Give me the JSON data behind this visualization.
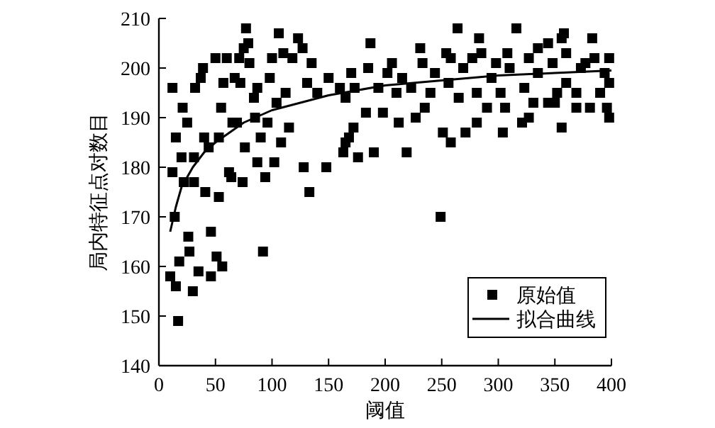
{
  "chart_data": {
    "type": "scatter",
    "xlabel": "阈值",
    "ylabel": "局内特征点对数目",
    "xlim": [
      0,
      400
    ],
    "ylim": [
      140,
      210
    ],
    "xticks": [
      0,
      50,
      100,
      150,
      200,
      250,
      300,
      350,
      400
    ],
    "yticks": [
      140,
      150,
      160,
      170,
      180,
      190,
      200,
      210
    ],
    "legend": "bottom right",
    "marker": "square",
    "series": [
      {
        "name": "原始值",
        "color": "#000000",
        "x": [
          12,
          12,
          10,
          15,
          14,
          15,
          17,
          18,
          20,
          21,
          22,
          25,
          26,
          27,
          30,
          31,
          31,
          32,
          35,
          37,
          39,
          40,
          41,
          44,
          46,
          46,
          50,
          51,
          53,
          53,
          56,
          55,
          57,
          60,
          62,
          64,
          65,
          67,
          69,
          71,
          72,
          74,
          75,
          77,
          76,
          79,
          80,
          84,
          85,
          87,
          87,
          90,
          92,
          94,
          96,
          98,
          100,
          102,
          104,
          106,
          108,
          110,
          112,
          115,
          118,
          123,
          127,
          128,
          131,
          133,
          135,
          148,
          140,
          150,
          160,
          165,
          170,
          172,
          168,
          264,
          316,
          358,
          383,
          356,
          283,
          187,
          231,
          254,
          344,
          249,
          258,
          219,
          190,
          176,
          271,
          251,
          281,
          304,
          321,
          356,
          398,
          396,
          227,
          212,
          198,
          183,
          165,
          163,
          290,
          327,
          381,
          369,
          344,
          350,
          331,
          235,
          306,
          202,
          215,
          244,
          269,
          294,
          310,
          335,
          360,
          377,
          394,
          194,
          223,
          256,
          281,
          302,
          323,
          352,
          369,
          390,
          173,
          210,
          240,
          265,
          277,
          298,
          327,
          348,
          373,
          398,
          185,
          206,
          233,
          258,
          285,
          308,
          335,
          360,
          385,
          398
        ],
        "values": [
          196,
          179,
          158,
          156,
          170,
          186,
          149,
          161,
          182,
          192,
          177,
          189,
          166,
          163,
          155,
          177,
          182,
          196,
          159,
          198,
          200,
          186,
          175,
          184,
          167,
          158,
          202,
          162,
          186,
          174,
          160,
          192,
          197,
          202,
          179,
          178,
          189,
          198,
          189,
          202,
          197,
          177,
          204,
          208,
          184,
          205,
          201,
          194,
          190,
          196,
          181,
          186,
          163,
          178,
          189,
          198,
          202,
          181,
          193,
          207,
          185,
          203,
          195,
          188,
          202,
          206,
          204,
          180,
          197,
          175,
          201,
          180,
          195,
          198,
          196,
          194,
          199,
          188,
          186,
          208,
          208,
          207,
          206,
          206,
          206,
          205,
          204,
          203,
          205,
          170,
          185,
          183,
          183,
          182,
          187,
          187,
          189,
          187,
          189,
          188,
          190,
          192,
          190,
          189,
          191,
          191,
          185,
          183,
          192,
          190,
          192,
          192,
          193,
          193,
          193,
          192,
          192,
          199,
          198,
          199,
          200,
          198,
          200,
          199,
          197,
          201,
          199,
          196,
          196,
          197,
          195,
          195,
          196,
          195,
          195,
          195,
          196,
          195,
          195,
          194,
          202,
          201,
          202,
          201,
          200,
          197,
          200,
          201,
          201,
          202,
          203,
          203,
          204,
          203,
          202,
          202
        ]
      },
      {
        "name": "拟合曲线",
        "type": "line",
        "color": "#000000",
        "marker": "none",
        "line_style": "solid",
        "x": [
          10,
          15,
          20,
          30,
          40,
          50,
          75,
          100,
          150,
          200,
          250,
          300,
          350,
          400
        ],
        "values": [
          167,
          172,
          176,
          180,
          183,
          185,
          189,
          191.5,
          194.5,
          196.5,
          197.5,
          198.5,
          199,
          199.5
        ]
      }
    ]
  }
}
